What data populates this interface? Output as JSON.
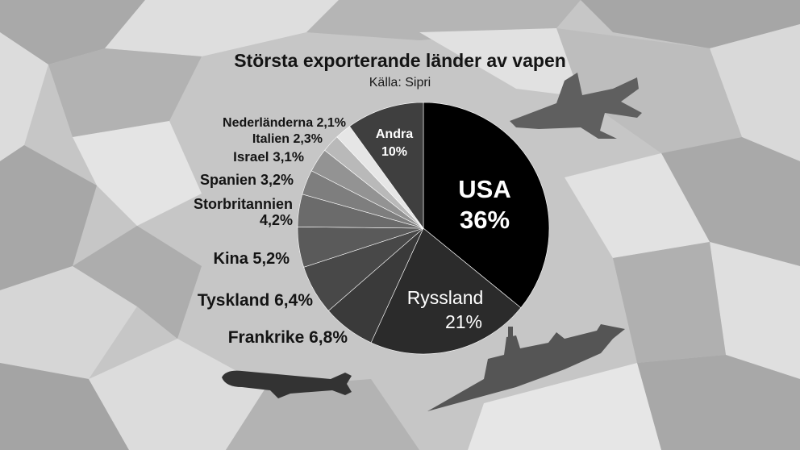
{
  "chart_data": {
    "type": "pie",
    "title": "Största exporterande länder av vapen",
    "subtitle": "Källa: Sipri",
    "slices": [
      {
        "label": "USA",
        "value": 36,
        "value_text": "36%",
        "color": "#000000",
        "label_color": "#ffffff"
      },
      {
        "label": "Ryssland",
        "value": 21,
        "value_text": "21%",
        "color": "#2b2b2b",
        "label_color": "#ffffff"
      },
      {
        "label": "Frankrike",
        "value": 6.8,
        "value_text": "6,8%",
        "color": "#3a3a3a",
        "label_color": "#141414"
      },
      {
        "label": "Tyskland",
        "value": 6.4,
        "value_text": "6,4%",
        "color": "#484848",
        "label_color": "#141414"
      },
      {
        "label": "Kina",
        "value": 5.2,
        "value_text": "5,2%",
        "color": "#5a5a5a",
        "label_color": "#141414"
      },
      {
        "label": "Storbritannien",
        "value": 4.2,
        "value_text": "4,2%",
        "color": "#6b6b6b",
        "label_color": "#141414"
      },
      {
        "label": "Spanien",
        "value": 3.2,
        "value_text": "3,2%",
        "color": "#7e7e7e",
        "label_color": "#141414"
      },
      {
        "label": "Israel",
        "value": 3.1,
        "value_text": "3,1%",
        "color": "#939393",
        "label_color": "#141414"
      },
      {
        "label": "Italien",
        "value": 2.3,
        "value_text": "2,3%",
        "color": "#b9b9b9",
        "label_color": "#141414"
      },
      {
        "label": "Nederländerna",
        "value": 2.1,
        "value_text": "2,1%",
        "color": "#e6e6e6",
        "label_color": "#141414"
      },
      {
        "label": "Andra",
        "value": 10,
        "value_text": "10%",
        "color": "#3f3f3f",
        "label_color": "#ffffff"
      }
    ]
  },
  "background": {
    "camo_colors": [
      "#a8a8a8",
      "#b7b7b7",
      "#dadada",
      "#e8e8e8"
    ],
    "decorations": [
      "fighter-jet-icon",
      "cruise-missile-icon",
      "warship-icon"
    ]
  }
}
